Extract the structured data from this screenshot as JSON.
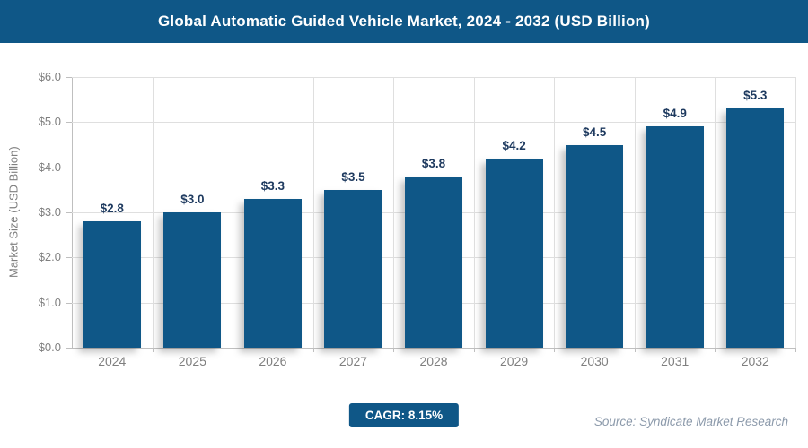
{
  "header": {
    "title": "Global Automatic Guided Vehicle Market, 2024 - 2032 (USD Billion)"
  },
  "chart_data": {
    "type": "bar",
    "title": "Global Automatic Guided Vehicle Market, 2024 - 2032 (USD Billion)",
    "categories": [
      "2024",
      "2025",
      "2026",
      "2027",
      "2028",
      "2029",
      "2030",
      "2031",
      "2032"
    ],
    "values": [
      2.8,
      3.0,
      3.3,
      3.5,
      3.8,
      4.2,
      4.5,
      4.9,
      5.3
    ],
    "value_labels": [
      "$2.8",
      "$3.0",
      "$3.3",
      "$3.5",
      "$3.8",
      "$4.2",
      "$4.5",
      "$4.9",
      "$5.3"
    ],
    "xlabel": "",
    "ylabel": "Market Size (USD Billion)",
    "ylim": [
      0,
      6
    ],
    "y_tick_labels": [
      "$0.0",
      "$1.0",
      "$2.0",
      "$3.0",
      "$4.0",
      "$5.0",
      "$6.0"
    ],
    "y_tick_values": [
      0,
      1,
      2,
      3,
      4,
      5,
      6
    ],
    "grid": true,
    "legend": false
  },
  "footer": {
    "cagr_label": "CAGR: 8.15%",
    "source": "Source: Syndicate Market Research"
  },
  "colors": {
    "accent": "#0F5787",
    "value_label": "#1E3A5F",
    "axis_text": "#7F7F7F",
    "grid": "#DFDFDF",
    "axis_line": "#BFBFBF",
    "source_text": "#8C9AAB"
  }
}
